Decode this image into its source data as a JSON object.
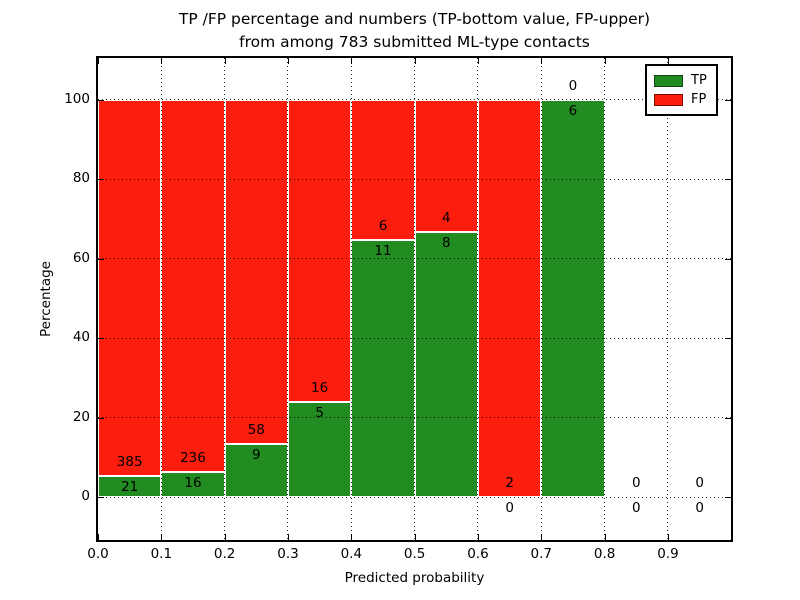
{
  "title": {
    "line1": "TP /FP percentage and numbers (TP-bottom value, FP-upper)",
    "line2": "from among 783 submitted ML-type contacts"
  },
  "chart_data": {
    "type": "bar",
    "stacked": true,
    "title": "TP /FP percentage and numbers (TP-bottom value, FP-upper) from among 783 submitted ML-type contacts",
    "xlabel": "Predicted probability",
    "ylabel": "Percentage",
    "total_contacts": 783,
    "xlim": [
      0.0,
      1.0
    ],
    "ylim": [
      -11,
      110
    ],
    "grid": true,
    "xtick_values": [
      0.0,
      0.1,
      0.2,
      0.3,
      0.4,
      0.5,
      0.6,
      0.7,
      0.8,
      0.9
    ],
    "xtick_labels": [
      "0.0",
      "0.1",
      "0.2",
      "0.3",
      "0.4",
      "0.5",
      "0.6",
      "0.7",
      "0.8",
      "0.9"
    ],
    "ytick_values": [
      0,
      20,
      40,
      60,
      80,
      100
    ],
    "ytick_labels": [
      "0",
      "20",
      "40",
      "60",
      "80",
      "100"
    ],
    "bin_edges": [
      0.0,
      0.1,
      0.2,
      0.3,
      0.4,
      0.5,
      0.6,
      0.7,
      0.8,
      0.9,
      1.0
    ],
    "legend": {
      "position": "upper-right",
      "entries": [
        {
          "label": "TP",
          "color": "#228b22"
        },
        {
          "label": "FP",
          "color": "#fb1d0d"
        }
      ]
    },
    "bins": [
      {
        "range": "0.0-0.1",
        "tp": 21,
        "fp": 385,
        "tp_pct": 5.17,
        "fp_pct": 94.83
      },
      {
        "range": "0.1-0.2",
        "tp": 16,
        "fp": 236,
        "tp_pct": 6.35,
        "fp_pct": 93.65
      },
      {
        "range": "0.2-0.3",
        "tp": 9,
        "fp": 58,
        "tp_pct": 13.43,
        "fp_pct": 86.57
      },
      {
        "range": "0.3-0.4",
        "tp": 5,
        "fp": 16,
        "tp_pct": 23.81,
        "fp_pct": 76.19
      },
      {
        "range": "0.4-0.5",
        "tp": 11,
        "fp": 6,
        "tp_pct": 64.71,
        "fp_pct": 35.29
      },
      {
        "range": "0.5-0.6",
        "tp": 8,
        "fp": 4,
        "tp_pct": 66.67,
        "fp_pct": 33.33
      },
      {
        "range": "0.6-0.7",
        "tp": 0,
        "fp": 2,
        "tp_pct": 0.0,
        "fp_pct": 100.0
      },
      {
        "range": "0.7-0.8",
        "tp": 6,
        "fp": 0,
        "tp_pct": 100.0,
        "fp_pct": 0.0
      },
      {
        "range": "0.8-0.9",
        "tp": 0,
        "fp": 0,
        "tp_pct": 0.0,
        "fp_pct": 0.0
      },
      {
        "range": "0.9-1.0",
        "tp": 0,
        "fp": 0,
        "tp_pct": 0.0,
        "fp_pct": 0.0
      }
    ]
  }
}
